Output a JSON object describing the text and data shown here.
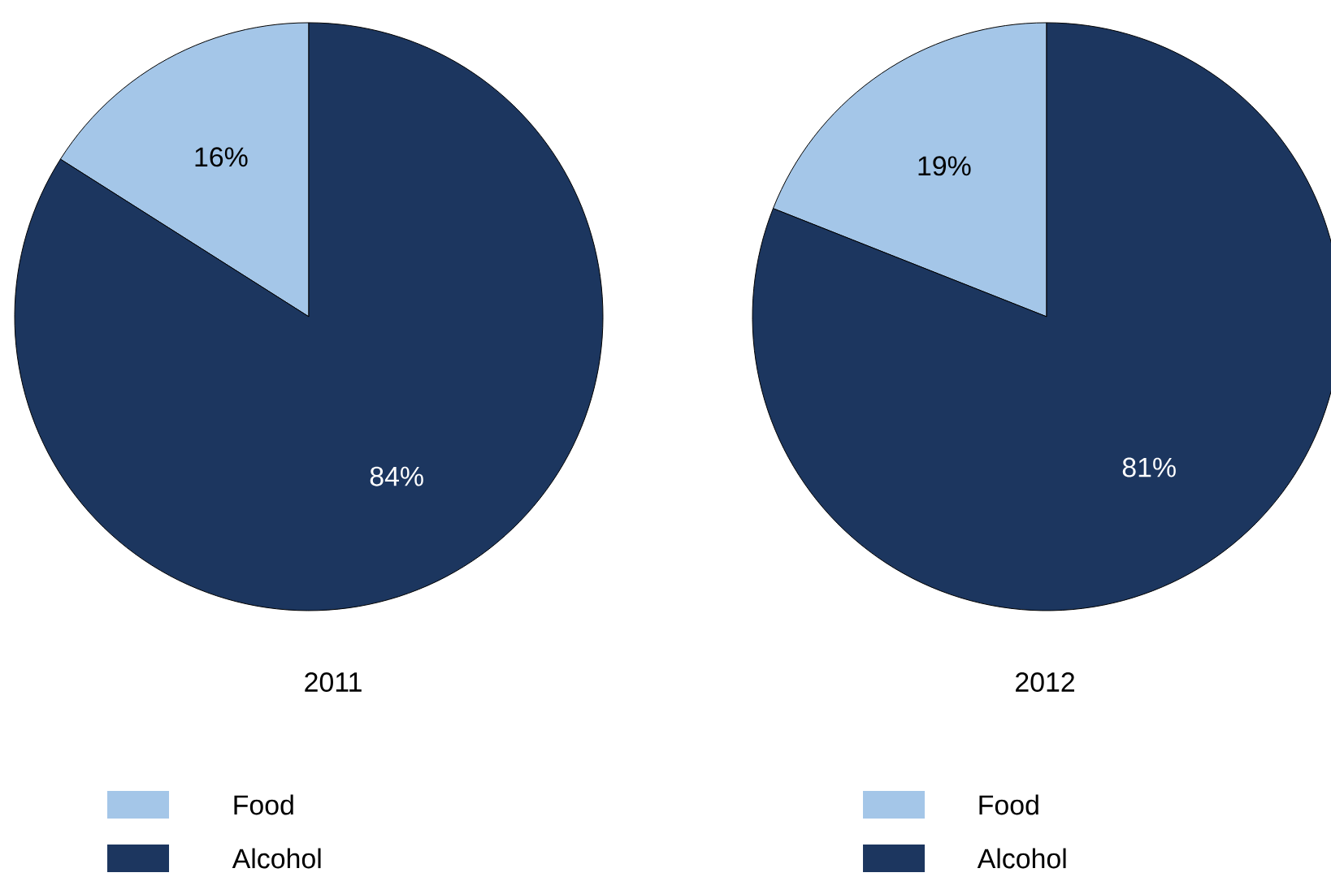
{
  "chart_data": [
    {
      "type": "pie",
      "title": "2011",
      "categories": [
        "Food",
        "Alcohol"
      ],
      "values": [
        16,
        84
      ],
      "colors": [
        "#a4c6e8",
        "#1c365f"
      ],
      "value_labels": [
        "16%",
        "84%"
      ],
      "legend": "bottom"
    },
    {
      "type": "pie",
      "title": "2012",
      "categories": [
        "Food",
        "Alcohol"
      ],
      "values": [
        19,
        81
      ],
      "colors": [
        "#a4c6e8",
        "#1c365f"
      ],
      "value_labels": [
        "19%",
        "81%"
      ],
      "legend": "bottom"
    }
  ]
}
